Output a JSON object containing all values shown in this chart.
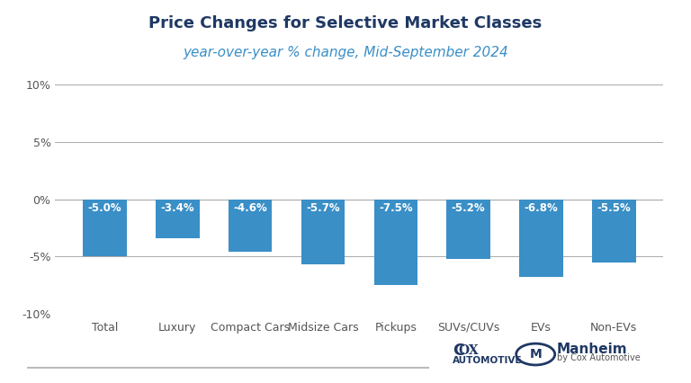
{
  "title": "Price Changes for Selective Market Classes",
  "subtitle": "year-over-year % change, Mid-September 2024",
  "categories": [
    "Total",
    "Luxury",
    "Compact Cars",
    "Midsize Cars",
    "Pickups",
    "SUVs/CUVs",
    "EVs",
    "Non-EVs"
  ],
  "values": [
    -5.0,
    -3.4,
    -4.6,
    -5.7,
    -7.5,
    -5.2,
    -6.8,
    -5.5
  ],
  "bar_color": "#3a8fc7",
  "label_color": "#ffffff",
  "title_color": "#1f3864",
  "subtitle_color": "#3a8fc7",
  "axis_color": "#aaaaaa",
  "tick_color": "#555555",
  "background_color": "#ffffff",
  "ylim": [
    -10,
    10
  ],
  "yticks": [
    -10,
    -5,
    0,
    5,
    10
  ],
  "bar_width": 0.6,
  "label_fontsize": 8.5,
  "title_fontsize": 13,
  "subtitle_fontsize": 11,
  "xtick_fontsize": 9,
  "ytick_fontsize": 9
}
